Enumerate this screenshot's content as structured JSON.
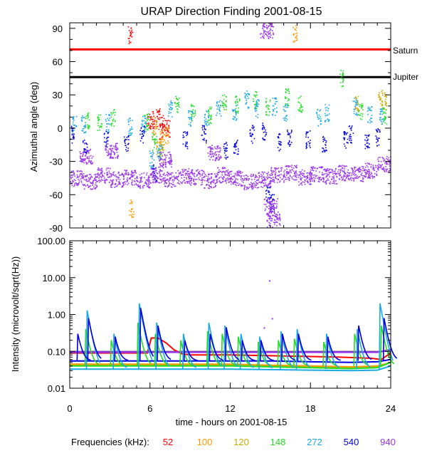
{
  "chart_data": [
    {
      "type": "scatter",
      "title": "URAP Direction Finding  2001-08-15",
      "xlabel": "time - hours on 2001-08-15",
      "ylabel": "Azimuthal angle (deg)",
      "xlim": [
        0,
        24
      ],
      "ylim": [
        -90,
        95
      ],
      "yticks": [
        90,
        60,
        30,
        0,
        -30,
        -60,
        -90
      ],
      "reference_lines": [
        {
          "name": "Saturn",
          "value": 71,
          "color": "#ff0000"
        },
        {
          "name": "Jupiter",
          "value": 46,
          "color": "#000000"
        }
      ],
      "series": [
        {
          "name": "52",
          "color": "#ff0000",
          "points": [
            [
              5.9,
              5
            ],
            [
              6.2,
              8
            ],
            [
              6.6,
              10
            ],
            [
              7.0,
              4
            ],
            [
              7.3,
              0
            ],
            [
              6.8,
              -3
            ],
            [
              4.5,
              84
            ]
          ]
        },
        {
          "name": "100",
          "color": "#ff9900",
          "points": [
            [
              6.3,
              2
            ],
            [
              6.9,
              -8
            ],
            [
              7.2,
              -6
            ],
            [
              16.8,
              86
            ],
            [
              4.6,
              -72
            ]
          ]
        },
        {
          "name": "120",
          "color": "#ccaa00",
          "points": [
            [
              6.6,
              -18
            ],
            [
              6.8,
              -22
            ],
            [
              23.2,
              28
            ],
            [
              23.5,
              25
            ],
            [
              21.5,
              22
            ]
          ]
        },
        {
          "name": "148",
          "color": "#22dd22",
          "points": [
            [
              1.3,
              8
            ],
            [
              2.2,
              6
            ],
            [
              3.2,
              10
            ],
            [
              5.7,
              6
            ],
            [
              6.3,
              -12
            ],
            [
              8.0,
              22
            ],
            [
              9.2,
              15
            ],
            [
              10.4,
              12
            ],
            [
              11.5,
              24
            ],
            [
              12.5,
              22
            ],
            [
              13.8,
              26
            ],
            [
              14.8,
              20
            ],
            [
              16.2,
              28
            ],
            [
              17.2,
              22
            ],
            [
              20.3,
              46
            ],
            [
              21.7,
              16
            ],
            [
              23.5,
              12
            ]
          ]
        },
        {
          "name": "272",
          "color": "#1aa8e8",
          "points": [
            [
              0.3,
              5
            ],
            [
              1.0,
              4
            ],
            [
              2.8,
              5
            ],
            [
              4.5,
              2
            ],
            [
              5.5,
              4
            ],
            [
              6.1,
              -28
            ],
            [
              6.7,
              -22
            ],
            [
              7.5,
              18
            ],
            [
              9.0,
              10
            ],
            [
              10.2,
              8
            ],
            [
              11.1,
              18
            ],
            [
              12.3,
              15
            ],
            [
              13.2,
              26
            ],
            [
              14.0,
              18
            ],
            [
              15.3,
              20
            ],
            [
              16.1,
              14
            ],
            [
              18.6,
              10
            ],
            [
              19.2,
              14
            ],
            [
              21.3,
              20
            ],
            [
              22.4,
              12
            ],
            [
              23.3,
              10
            ]
          ]
        },
        {
          "name": "540",
          "color": "#0000dd",
          "points": [
            [
              0.1,
              -5
            ],
            [
              1.1,
              -15
            ],
            [
              2.7,
              -10
            ],
            [
              4.2,
              -14
            ],
            [
              5.4,
              -5
            ],
            [
              6.3,
              -40
            ],
            [
              8.6,
              -10
            ],
            [
              10.0,
              -5
            ],
            [
              11.6,
              -20
            ],
            [
              12.4,
              -15
            ],
            [
              13.6,
              -5
            ],
            [
              14.5,
              -3
            ],
            [
              15.6,
              -12
            ],
            [
              16.4,
              -8
            ],
            [
              17.8,
              -10
            ],
            [
              19.0,
              -15
            ],
            [
              20.6,
              -10
            ],
            [
              21.0,
              -5
            ],
            [
              22.2,
              -12
            ],
            [
              23.0,
              -8
            ],
            [
              14.8,
              -59
            ],
            [
              15.1,
              -67
            ]
          ]
        },
        {
          "name": "940",
          "color": "#9933ee",
          "points": [
            [
              0.5,
              -45
            ],
            [
              1.5,
              -48
            ],
            [
              2.5,
              -42
            ],
            [
              3.5,
              -46
            ],
            [
              4.5,
              -44
            ],
            [
              5.5,
              -47
            ],
            [
              6.5,
              -42
            ],
            [
              7.5,
              -46
            ],
            [
              8.5,
              -43
            ],
            [
              9.5,
              -44
            ],
            [
              10.5,
              -47
            ],
            [
              11.5,
              -42
            ],
            [
              12.5,
              -45
            ],
            [
              13.5,
              -48
            ],
            [
              14.5,
              -46
            ],
            [
              15.5,
              -42
            ],
            [
              16.5,
              -40
            ],
            [
              17.5,
              -44
            ],
            [
              18.5,
              -41
            ],
            [
              19.5,
              -43
            ],
            [
              20.5,
              -40
            ],
            [
              21.5,
              -41
            ],
            [
              22.5,
              -38
            ],
            [
              23.5,
              -32
            ],
            [
              1.2,
              -25
            ],
            [
              3.1,
              -20
            ],
            [
              7.1,
              -28
            ],
            [
              10.8,
              -22
            ],
            [
              15.0,
              -70
            ],
            [
              15.2,
              -82
            ],
            [
              14.7,
              88
            ]
          ]
        }
      ]
    },
    {
      "type": "line",
      "xlabel": "time - hours on 2001-08-15",
      "ylabel": "Intensity (microvolt/sqrt(Hz))",
      "xlim": [
        0,
        24
      ],
      "xticks": [
        0,
        6,
        12,
        18,
        24
      ],
      "yscale": "log",
      "ylim": [
        0.01,
        100
      ],
      "yticks": [
        "100.00",
        "10.00",
        "1.00",
        "0.10",
        "0.01"
      ],
      "reference_line": 0.1,
      "series": [
        {
          "name": "52",
          "color": "#ff0000",
          "x": [
            0,
            5.8,
            6.1,
            6.6,
            7.2,
            7.8,
            8.4,
            9,
            12,
            16,
            20,
            22.5,
            23.3,
            24
          ],
          "y": [
            0.09,
            0.09,
            0.23,
            0.23,
            0.17,
            0.11,
            0.085,
            0.08,
            0.08,
            0.075,
            0.07,
            0.065,
            0.06,
            0.09
          ]
        },
        {
          "name": "100",
          "color": "#ff9900",
          "x": [
            0,
            3,
            6,
            9,
            12,
            15,
            18,
            21,
            23,
            24
          ],
          "y": [
            0.045,
            0.045,
            0.045,
            0.045,
            0.045,
            0.042,
            0.04,
            0.038,
            0.04,
            0.05
          ]
        },
        {
          "name": "120",
          "color": "#ccaa00",
          "x": [
            0,
            3,
            6,
            9,
            12,
            15,
            18,
            21,
            23,
            24
          ],
          "y": [
            0.042,
            0.042,
            0.042,
            0.042,
            0.042,
            0.04,
            0.038,
            0.036,
            0.038,
            0.05
          ]
        },
        {
          "name": "148",
          "color": "#22dd22",
          "x": [
            0,
            3,
            6,
            9,
            12,
            15,
            18,
            21,
            23,
            24
          ],
          "y": [
            0.04,
            0.04,
            0.04,
            0.04,
            0.04,
            0.038,
            0.036,
            0.034,
            0.036,
            0.05
          ]
        },
        {
          "name": "272",
          "color": "#1aa8e8",
          "x": [
            0,
            3,
            6,
            9,
            12,
            15,
            18,
            21,
            23,
            24
          ],
          "y": [
            0.033,
            0.033,
            0.033,
            0.033,
            0.033,
            0.032,
            0.031,
            0.03,
            0.031,
            0.04
          ]
        },
        {
          "name": "540",
          "color": "#0000dd",
          "x": [
            0,
            3,
            6,
            9,
            12,
            15,
            18,
            21,
            23,
            24
          ],
          "y": [
            0.055,
            0.055,
            0.055,
            0.055,
            0.055,
            0.055,
            0.052,
            0.05,
            0.052,
            0.06
          ]
        },
        {
          "name": "940",
          "color": "#9933ee",
          "x": [
            0,
            3,
            6,
            9,
            12,
            15,
            18,
            21,
            23,
            24
          ],
          "y": [
            0.095,
            0.095,
            0.095,
            0.095,
            0.095,
            0.095,
            0.095,
            0.095,
            0.095,
            0.11
          ]
        }
      ],
      "bursts": [
        {
          "name": "148",
          "color": "#22dd22",
          "peaks": [
            [
              1.2,
              0.4
            ],
            [
              3.1,
              0.2
            ],
            [
              5.1,
              0.6
            ],
            [
              6.4,
              0.3
            ],
            [
              8.3,
              0.2
            ],
            [
              10.3,
              0.35
            ],
            [
              11.4,
              0.3
            ],
            [
              12.6,
              0.25
            ],
            [
              14.1,
              0.18
            ],
            [
              15.6,
              0.2
            ],
            [
              16.8,
              0.22
            ],
            [
              19.0,
              0.18
            ],
            [
              21.3,
              0.3
            ],
            [
              23.3,
              0.5
            ]
          ]
        },
        {
          "name": "272",
          "color": "#1aa8e8",
          "peaks": [
            [
              1.3,
              1.3
            ],
            [
              3.3,
              0.3
            ],
            [
              5.2,
              2.0
            ],
            [
              6.5,
              0.6
            ],
            [
              8.5,
              0.3
            ],
            [
              10.4,
              0.6
            ],
            [
              11.6,
              0.5
            ],
            [
              12.8,
              0.3
            ],
            [
              14.2,
              0.25
            ],
            [
              15.8,
              0.35
            ],
            [
              17.0,
              0.4
            ],
            [
              19.2,
              0.3
            ],
            [
              21.5,
              0.4
            ],
            [
              23.2,
              2.0
            ]
          ]
        },
        {
          "name": "540",
          "color": "#0000dd",
          "peaks": [
            [
              0.6,
              0.3
            ],
            [
              1.4,
              0.8
            ],
            [
              3.4,
              0.25
            ],
            [
              5.3,
              1.5
            ],
            [
              6.6,
              0.5
            ],
            [
              8.6,
              0.2
            ],
            [
              10.5,
              0.3
            ],
            [
              11.7,
              0.45
            ],
            [
              12.9,
              0.2
            ],
            [
              14.3,
              0.2
            ],
            [
              15.9,
              0.3
            ],
            [
              17.1,
              0.3
            ],
            [
              19.3,
              0.25
            ],
            [
              21.6,
              0.5
            ],
            [
              23.5,
              0.8
            ]
          ]
        }
      ],
      "outliers": [
        [
          14.9,
          8.5
        ],
        [
          15.1,
          0.8
        ],
        [
          14.5,
          0.45
        ]
      ]
    }
  ],
  "frequency_legend": {
    "label": "Frequencies (kHz):",
    "items": [
      {
        "value": "52",
        "color": "#ff0000"
      },
      {
        "value": "100",
        "color": "#ff9900"
      },
      {
        "value": "120",
        "color": "#ccaa00"
      },
      {
        "value": "148",
        "color": "#22dd22"
      },
      {
        "value": "272",
        "color": "#1aa8e8"
      },
      {
        "value": "540",
        "color": "#0000dd"
      },
      {
        "value": "940",
        "color": "#9933ee"
      }
    ]
  }
}
